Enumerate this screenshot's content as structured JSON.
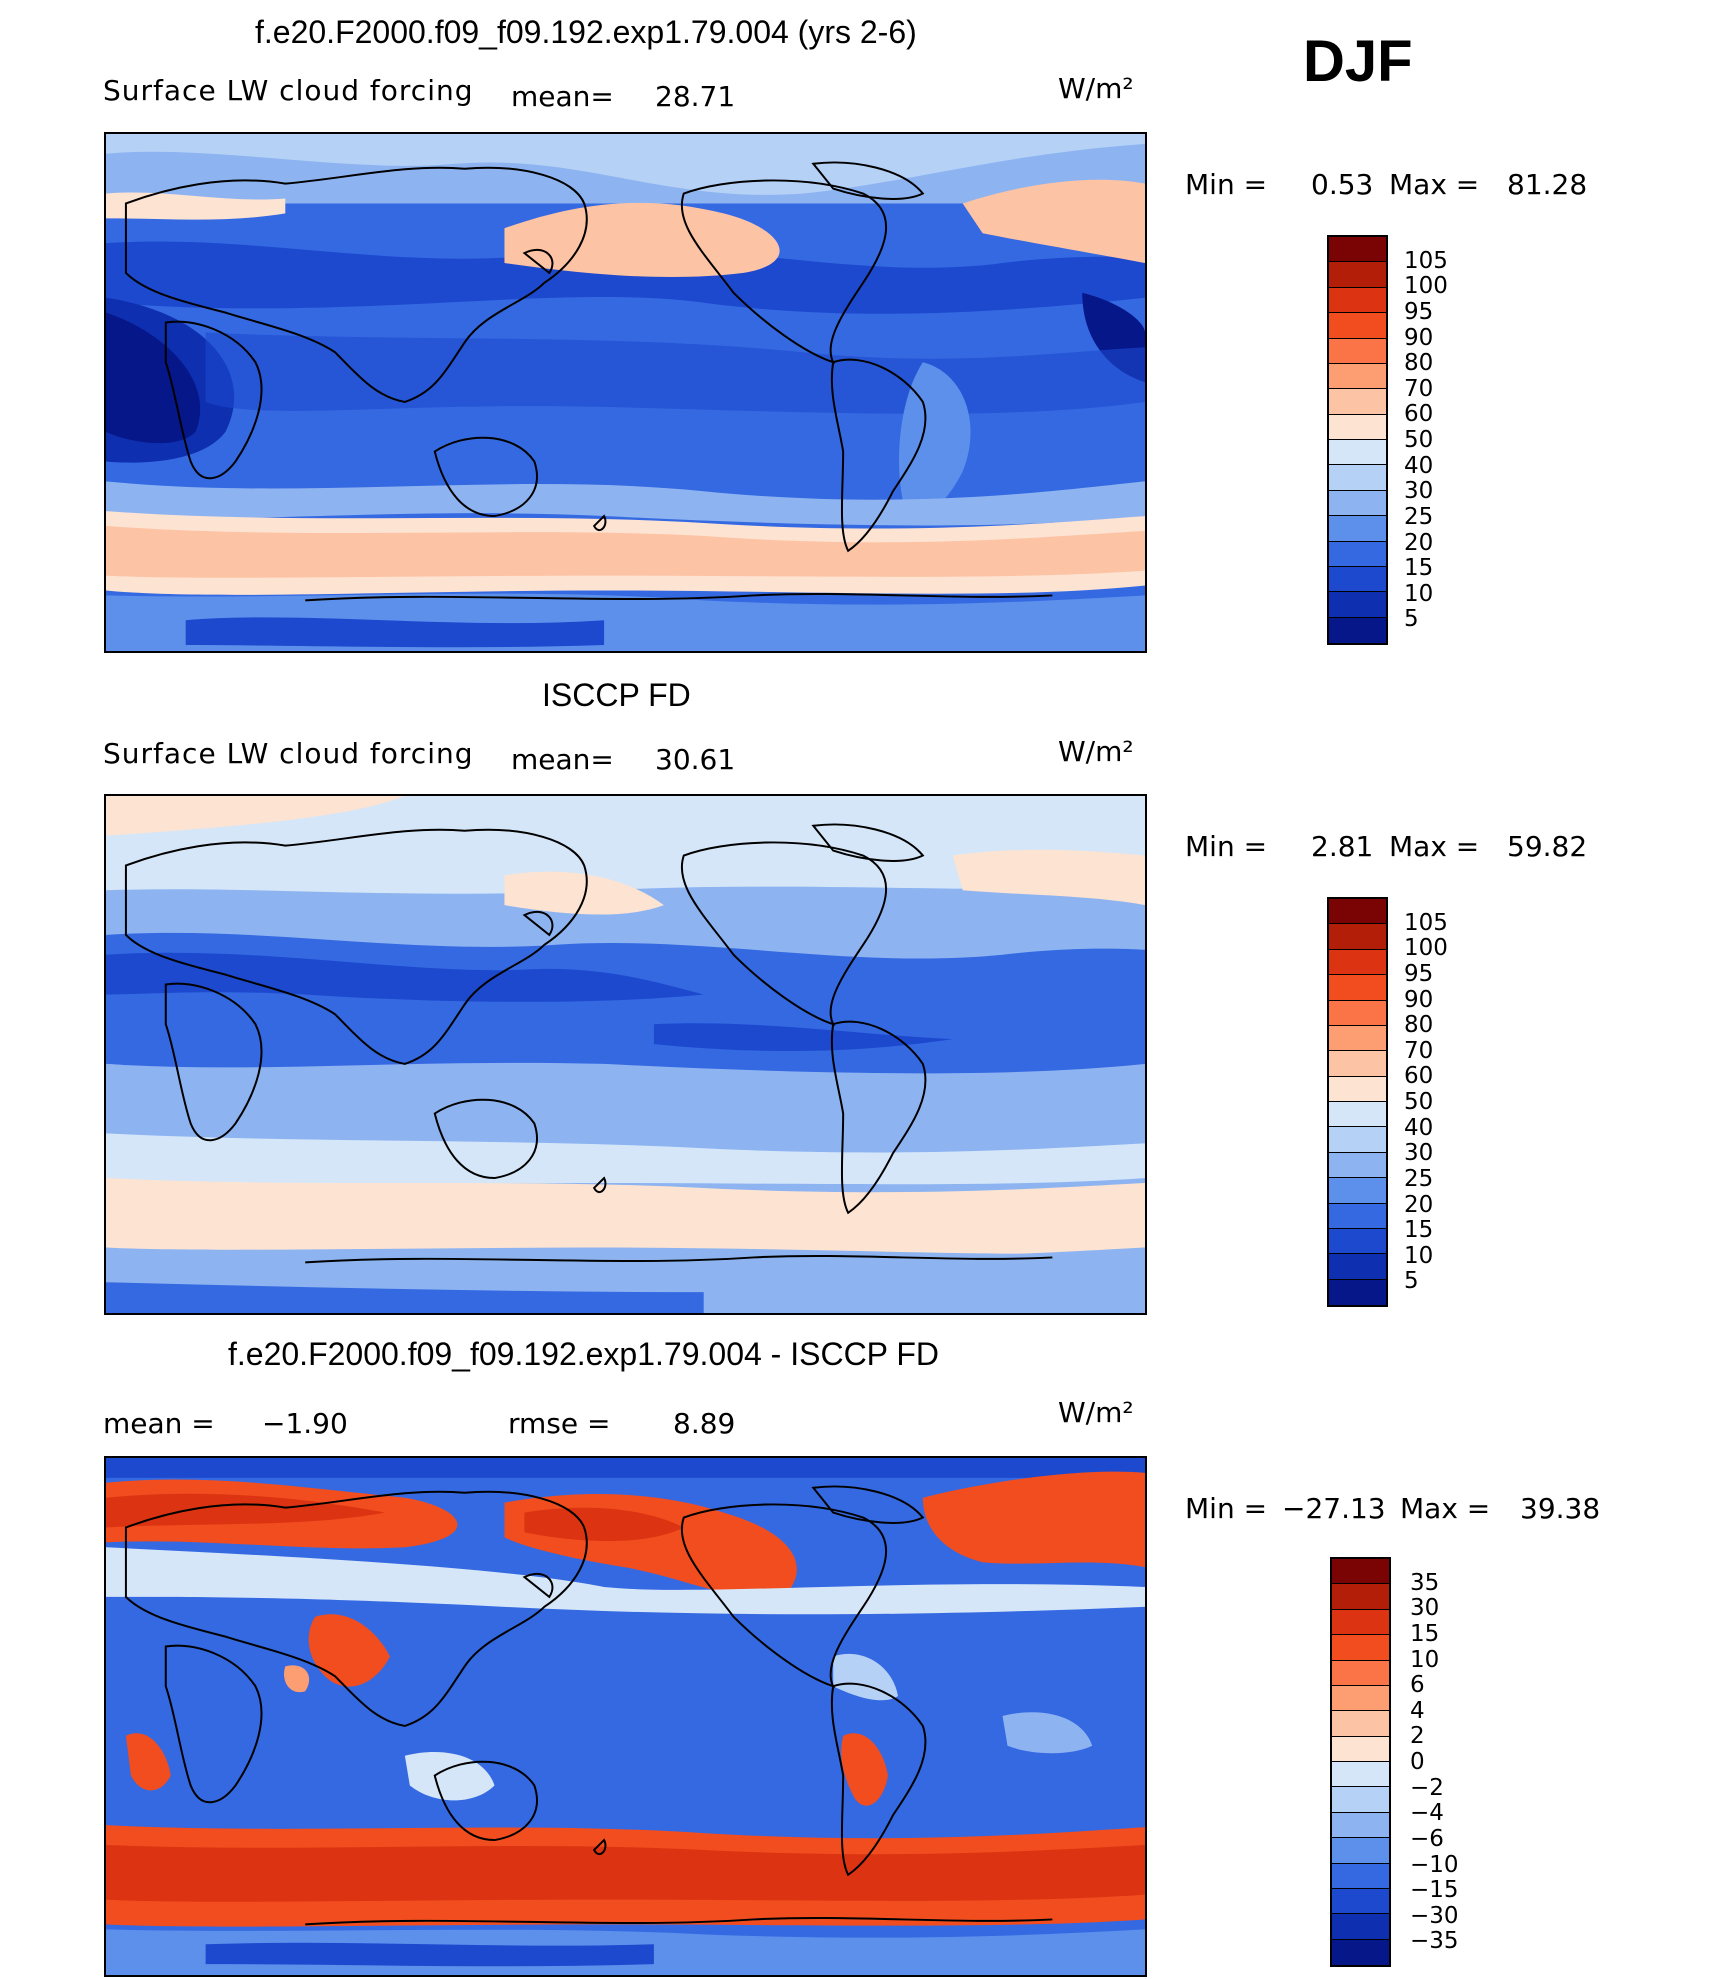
{
  "season": "DJF",
  "units": "W/m²",
  "panels": [
    {
      "title": "f.e20.F2000.f09_f09.192.exp1.79.004 (yrs 2-6)",
      "variable": "Surface LW cloud forcing",
      "mean_label": "mean=",
      "mean_value": "28.71",
      "min_label": "Min =",
      "min_value": "0.53",
      "max_label": "Max =",
      "max_value": "81.28",
      "levels": [
        "105",
        "100",
        "95",
        "90",
        "80",
        "70",
        "60",
        "50",
        "40",
        "30",
        "25",
        "20",
        "15",
        "10",
        "5"
      ],
      "colors": [
        "#7a0403",
        "#b31e08",
        "#dc3412",
        "#f24d1e",
        "#fb7448",
        "#fd9d72",
        "#fdc3a5",
        "#fde3d2",
        "#d5e6f9",
        "#b6d1f6",
        "#8db4f1",
        "#5c90eb",
        "#3569e2",
        "#1d49cf",
        "#0d2fb0",
        "#06178a"
      ]
    },
    {
      "title": "ISCCP FD",
      "variable": "Surface LW cloud forcing",
      "mean_label": "mean=",
      "mean_value": "30.61",
      "min_label": "Min =",
      "min_value": "2.81",
      "max_label": "Max =",
      "max_value": "59.82",
      "levels": [
        "105",
        "100",
        "95",
        "90",
        "80",
        "70",
        "60",
        "50",
        "40",
        "30",
        "25",
        "20",
        "15",
        "10",
        "5"
      ],
      "colors": [
        "#7a0403",
        "#b31e08",
        "#dc3412",
        "#f24d1e",
        "#fb7448",
        "#fd9d72",
        "#fdc3a5",
        "#fde3d2",
        "#d5e6f9",
        "#b6d1f6",
        "#8db4f1",
        "#5c90eb",
        "#3569e2",
        "#1d49cf",
        "#0d2fb0",
        "#06178a"
      ]
    },
    {
      "title": "f.e20.F2000.f09_f09.192.exp1.79.004 - ISCCP FD",
      "mean_label": "mean =",
      "mean_value": "−1.90",
      "rmse_label": "rmse =",
      "rmse_value": "8.89",
      "min_label": "Min =",
      "min_value": "−27.13",
      "max_label": "Max =",
      "max_value": "39.38",
      "levels": [
        "35",
        "30",
        "15",
        "10",
        "6",
        "4",
        "2",
        "0",
        "−2",
        "−4",
        "−6",
        "−10",
        "−15",
        "−30",
        "−35"
      ],
      "colors": [
        "#7a0403",
        "#b31e08",
        "#dc3412",
        "#f24d1e",
        "#fb7448",
        "#fd9d72",
        "#fdc3a5",
        "#fde3d2",
        "#d5e6f9",
        "#b6d1f6",
        "#8db4f1",
        "#5c90eb",
        "#3569e2",
        "#1d49cf",
        "#0d2fb0",
        "#06178a"
      ]
    }
  ]
}
